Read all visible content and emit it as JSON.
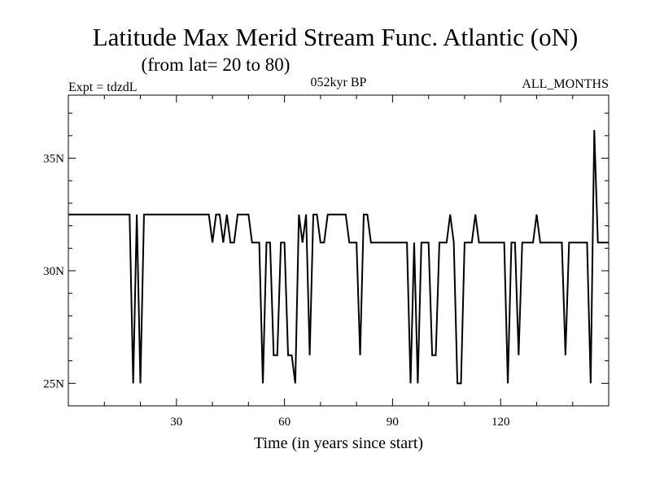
{
  "chart_data": {
    "type": "line",
    "title": "Latitude Max Merid Stream Func. Atlantic (oN)",
    "subtitle": "(from lat= 20 to 80)",
    "annotation_left": "Expt = tdzdL",
    "annotation_center": "052kyr BP",
    "annotation_right": "ALL_MONTHS",
    "xlabel": "Time (in years since start)",
    "ylabel": "",
    "xlim": [
      0,
      150
    ],
    "ylim": [
      24,
      37.8
    ],
    "x_ticks": [
      30,
      60,
      90,
      120
    ],
    "x_tick_labels": [
      "30",
      "60",
      "90",
      "120"
    ],
    "y_ticks": [
      25,
      30,
      35
    ],
    "y_tick_labels": [
      "25N",
      "30N",
      "35N"
    ],
    "x_minor_step": 10,
    "y_minor_step": 1,
    "grid": false,
    "series": [
      {
        "name": "Latitude Max",
        "color": "#000000",
        "x": [
          0,
          17,
          18,
          19,
          20,
          21,
          22,
          39,
          40,
          41,
          42,
          43,
          44,
          45,
          46,
          47,
          48,
          49,
          50,
          51,
          52,
          53,
          54,
          55,
          56,
          57,
          58,
          59,
          60,
          61,
          62,
          63,
          64,
          65,
          66,
          67,
          68,
          69,
          70,
          71,
          72,
          73,
          74,
          75,
          76,
          77,
          78,
          79,
          80,
          81,
          82,
          83,
          84,
          85,
          86,
          87,
          88,
          89,
          90,
          91,
          92,
          93,
          94,
          95,
          96,
          97,
          98,
          99,
          100,
          101,
          102,
          103,
          104,
          105,
          106,
          107,
          108,
          109,
          110,
          111,
          112,
          113,
          114,
          115,
          116,
          117,
          118,
          119,
          120,
          121,
          122,
          123,
          124,
          125,
          126,
          127,
          128,
          129,
          130,
          131,
          132,
          133,
          134,
          135,
          136,
          137,
          138,
          139,
          140,
          141,
          142,
          143,
          144,
          145,
          146,
          147,
          148,
          149,
          150
        ],
        "values": [
          32.5,
          32.5,
          25,
          32.5,
          25,
          32.5,
          32.5,
          32.5,
          31.25,
          32.5,
          32.5,
          31.25,
          32.5,
          31.25,
          31.25,
          32.5,
          32.5,
          32.5,
          32.5,
          31.25,
          31.25,
          31.25,
          25,
          31.25,
          31.25,
          26.25,
          26.25,
          31.25,
          31.25,
          26.25,
          26.25,
          25,
          32.5,
          31.25,
          32.5,
          26.25,
          32.5,
          32.5,
          31.25,
          31.25,
          32.5,
          32.5,
          32.5,
          32.5,
          32.5,
          32.5,
          31.25,
          31.25,
          31.25,
          26.25,
          32.5,
          32.5,
          31.25,
          31.25,
          31.25,
          31.25,
          31.25,
          31.25,
          31.25,
          31.25,
          31.25,
          31.25,
          31.25,
          25,
          31.25,
          25,
          31.25,
          31.25,
          31.25,
          26.25,
          26.25,
          31.25,
          31.25,
          31.25,
          32.5,
          31.25,
          25,
          25,
          31.25,
          31.25,
          31.25,
          32.5,
          31.25,
          31.25,
          31.25,
          31.25,
          31.25,
          31.25,
          31.25,
          31.25,
          25,
          31.25,
          31.25,
          26.25,
          31.25,
          31.25,
          31.25,
          31.25,
          32.5,
          31.25,
          31.25,
          31.25,
          31.25,
          31.25,
          31.25,
          31.25,
          26.25,
          31.25,
          31.25,
          31.25,
          31.25,
          31.25,
          31.25,
          25,
          36.25,
          31.25,
          31.25,
          31.25,
          31.25
        ]
      }
    ]
  }
}
